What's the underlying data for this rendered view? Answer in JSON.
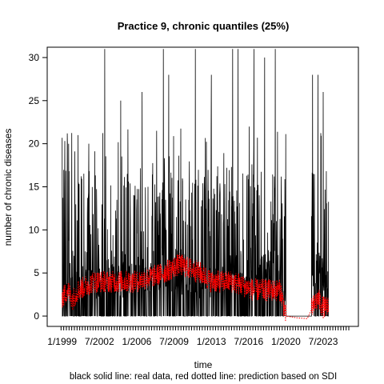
{
  "chart_data": {
    "type": "line",
    "title": "Practice 9, chronic quantiles (25%)",
    "xlabel": "time",
    "ylabel": "number of chronic diseases",
    "caption": "black solid line: real data, red dotted line: prediction based on SDI",
    "x_tick_labels": [
      "1/1999",
      "7/2002",
      "1/2006",
      "7/2009",
      "1/2013",
      "7/2016",
      "1/2020",
      "7/2023"
    ],
    "x_tick_years": [
      1999.0,
      2002.5,
      2006.0,
      2009.5,
      2013.0,
      2016.5,
      2020.0,
      2023.5
    ],
    "xlim": [
      1997.6,
      2026.8
    ],
    "ylim": [
      -1.2,
      31.2
    ],
    "y_ticks": [
      0,
      5,
      10,
      15,
      20,
      25,
      30
    ],
    "grid": false,
    "legend": "none",
    "series": [
      {
        "name": "real data",
        "color": "#000000",
        "style": "solid",
        "x": [
          "1/1999",
          "7/2000",
          "1/2002",
          "7/2003",
          "1/2005",
          "7/2006",
          "1/2008",
          "7/2009",
          "1/2011",
          "7/2012",
          "1/2014",
          "7/2015",
          "1/2017",
          "7/2018",
          "1/2019",
          "7/2019",
          "1/2020",
          "7/2020",
          "1/2022",
          "7/2022",
          "1/2023",
          "7/2023",
          "1/2024"
        ],
        "values": [
          2,
          3,
          3,
          4,
          3,
          4,
          4,
          4,
          3,
          3,
          4,
          5,
          4,
          5,
          5,
          4,
          0,
          0,
          0,
          3,
          5,
          3,
          3
        ],
        "peaks": [
          {
            "date": "7/1999",
            "value": 20
          },
          {
            "date": "7/2000",
            "value": 21
          },
          {
            "date": "7/2001",
            "value": 20
          },
          {
            "date": "1/2003",
            "value": 31
          },
          {
            "date": "7/2004",
            "value": 25
          },
          {
            "date": "7/2006",
            "value": 26
          },
          {
            "date": "7/2008",
            "value": 31
          },
          {
            "date": "1/2009",
            "value": 28
          },
          {
            "date": "7/2011",
            "value": 31
          },
          {
            "date": "1/2013",
            "value": 28
          },
          {
            "date": "1/2015",
            "value": 31
          },
          {
            "date": "7/2015",
            "value": 31
          },
          {
            "date": "1/2017",
            "value": 31
          },
          {
            "date": "1/2018",
            "value": 30
          },
          {
            "date": "1/2019",
            "value": 31
          },
          {
            "date": "7/2022",
            "value": 28
          },
          {
            "date": "1/2023",
            "value": 28
          },
          {
            "date": "7/2023",
            "value": 26
          }
        ]
      },
      {
        "name": "prediction based on SDI",
        "color": "#ff0000",
        "style": "dotted",
        "x": [
          "1/1999",
          "7/1999",
          "1/2000",
          "7/2000",
          "1/2002",
          "1/2004",
          "1/2006",
          "7/2008",
          "1/2010",
          "1/2012",
          "1/2013",
          "1/2015",
          "1/2017",
          "1/2019",
          "7/2019",
          "1/2020",
          "1/2021",
          "1/2022",
          "7/2022",
          "1/2023",
          "7/2023",
          "1/2024"
        ],
        "values": [
          2,
          3,
          2,
          3,
          4,
          4,
          4,
          5,
          6,
          5,
          4,
          4,
          3,
          3,
          3,
          0,
          -0.2,
          -0.3,
          1,
          2,
          1,
          1
        ]
      }
    ]
  }
}
